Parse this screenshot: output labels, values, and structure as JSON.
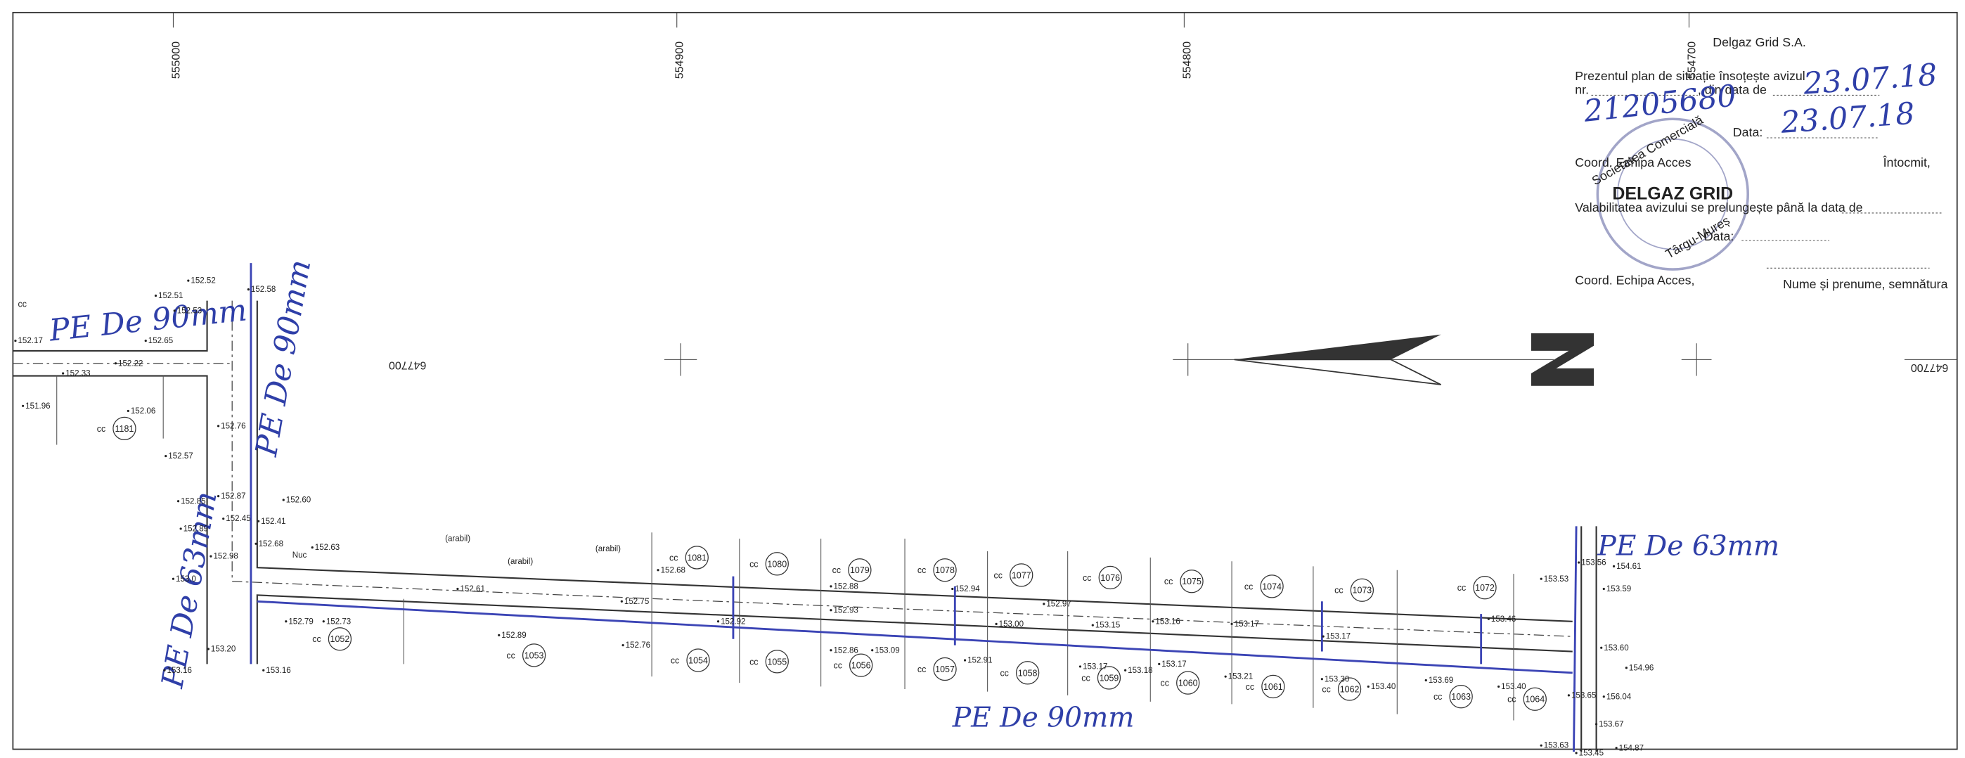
{
  "grid_labels": [
    "555000",
    "554900",
    "554800",
    "554700"
  ],
  "northing_labels": [
    "647700",
    "647700"
  ],
  "header": {
    "company": "Delgaz Grid S.A.",
    "line1": "Prezentul plan de situație însoțește avizul",
    "nr": "nr.",
    "din_data": ", din data de",
    "data1": "Data:",
    "coord1": "Coord. Echipa Acces",
    "intocmit": "Întocmit,",
    "valabilitate": "Valabilitatea avizului se prelungește până la data de",
    "data2": "Data:",
    "coord2": "Coord. Echipa Acces,",
    "semnatura": "Nume și prenume, semnătura"
  },
  "handwriting": {
    "aviz_nr": "21205680",
    "date1": "23.07.18",
    "date2": "23.07.18"
  },
  "stamp": {
    "top": "Societatea Comercială",
    "middle": "DELGAZ GRID",
    "bottom": "Târgu-Mureș"
  },
  "pipe_labels": [
    "PE De 90mm",
    "PE De 90mm",
    "PE De 63mm",
    "PE De 63mm",
    "PE De 90mm"
  ],
  "land_use": "cc",
  "parcels": [
    "1181",
    "1081",
    "1080",
    "1079",
    "1078",
    "1077",
    "1076",
    "1075",
    "1074",
    "1073",
    "1072",
    "1052",
    "1053",
    "1054",
    "1055",
    "1056",
    "1057",
    "1058",
    "1059",
    "1060",
    "1061",
    "1062",
    "1063",
    "1064"
  ],
  "field_labels": [
    "(arabil)",
    "(arabil)",
    "(arabil)",
    "Nuc"
  ],
  "elevations": [
    "152.52",
    "152.58",
    "152.51",
    "152.53",
    "152.17",
    "152.65",
    "152.33",
    "152.22",
    "151.96",
    "152.06",
    "152.57",
    "152.76",
    "152.85",
    "152.87",
    "152.60",
    "152.89",
    "152.45",
    "152.41",
    "152.68",
    "152.63",
    "152.98",
    "153.0",
    "152.79",
    "152.73",
    "153.20",
    "153.16",
    "153.16",
    "152.61",
    "152.68",
    "152.88",
    "152.93",
    "152.75",
    "152.89",
    "152.76",
    "152.86",
    "153.09",
    "152.92",
    "153.00",
    "153.17",
    "153.18",
    "153.17",
    "153.15",
    "153.16",
    "153.17",
    "153.17",
    "153.30",
    "153.40",
    "153.69",
    "153.40",
    "153.46",
    "153.53",
    "153.56",
    "154.61",
    "153.59",
    "153.60",
    "154.96",
    "156.04",
    "153.65",
    "153.67",
    "153.63",
    "153.45",
    "154.87",
    "152.94",
    "152.97",
    "153.21",
    "152.91"
  ]
}
